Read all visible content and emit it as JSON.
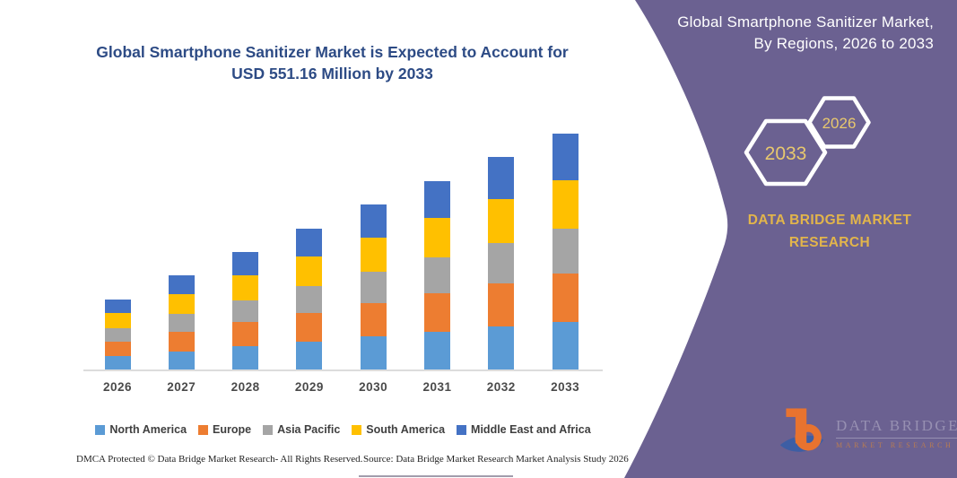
{
  "left_section": {
    "title_line1": "Global Smartphone Sanitizer Market is Expected to Account for",
    "title_line2": "USD 551.16 Million by 2033",
    "footer": {
      "dmca": "DMCA Protected © Data Bridge Market Research-  All Rights Reserved.",
      "source": "Source: Data Bridge Market Research  Market Analysis Study 2026"
    }
  },
  "right_panel": {
    "background_color": "#6B6191",
    "title_line1": "Global Smartphone Sanitizer Market,",
    "title_line2": "By Regions, 2026 to 2033",
    "hexagons": {
      "back_year": "2033",
      "front_year": "2026",
      "year_color": "#E8C86E",
      "outline_color": "#ffffff"
    },
    "brand_text_line1": "DATA BRIDGE MARKET",
    "brand_text_line2": "RESEARCH",
    "brand_text_color": "#E2B54B",
    "logo": {
      "glyph": "data-bridge-b-and-swoosh",
      "title": "DATA BRIDGE",
      "subtitle": "MARKET RESEARCH"
    }
  },
  "chart_data": {
    "type": "bar",
    "stacked": true,
    "title": "Global Smartphone Sanitizer Market is Expected to Account for USD 551.16 Million by 2033",
    "unit": "USD Million",
    "categories": [
      "2026",
      "2027",
      "2028",
      "2029",
      "2030",
      "2031",
      "2032",
      "2033"
    ],
    "series": [
      {
        "name": "North America",
        "color": "#5B9BD5",
        "values": [
          30.9,
          42.4,
          54.0,
          65.6,
          77.3,
          88.9,
          100.4,
          112.0
        ]
      },
      {
        "name": "Europe",
        "color": "#ED7D31",
        "values": [
          33.6,
          44.8,
          56.1,
          67.2,
          78.4,
          89.7,
          100.9,
          112.0
        ]
      },
      {
        "name": "Asia Pacific",
        "color": "#A5A5A5",
        "values": [
          31.5,
          42.0,
          52.3,
          62.8,
          73.1,
          83.6,
          93.9,
          104.4
        ]
      },
      {
        "name": "South America",
        "color": "#FFC000",
        "values": [
          35.1,
          46.4,
          57.8,
          68.9,
          80.3,
          91.6,
          103.0,
          114.1
        ]
      },
      {
        "name": "Middle East and Africa",
        "color": "#4472C4",
        "values": [
          33.0,
          43.7,
          54.6,
          65.4,
          76.3,
          87.0,
          97.7,
          108.6
        ]
      }
    ],
    "totals_estimated": [
      164.1,
      219.3,
      274.8,
      329.9,
      385.4,
      440.8,
      495.9,
      551.16
    ],
    "ylim": [
      0,
      560
    ],
    "legend_position": "bottom",
    "gridlines": false,
    "note": "values estimated from bar pixel heights; 2033 total anchored to USD 551.16 Million stated in title"
  }
}
